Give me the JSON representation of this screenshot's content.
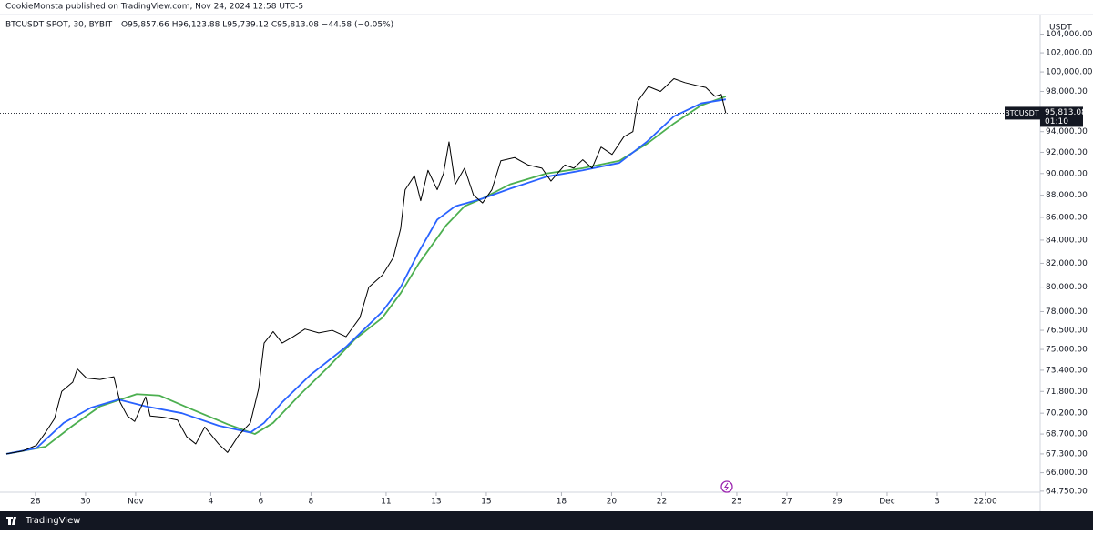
{
  "header": {
    "published": "CookieMonsta published on TradingView.com, Nov 24, 2024 12:58 UTC-5"
  },
  "footer": {
    "brand": "TradingView"
  },
  "chart_data": {
    "type": "line",
    "symbol": "BTCUSDT SPOT, 30, BYBIT",
    "ohlc": "O95,857.66 H96,123.88 L95,739.12 C95,813.08 −44.58 (−0.05%)",
    "currency": "USDT",
    "ticker": "BTCUSDT",
    "last_price": 95813.08,
    "last_price_label": "95,813.08",
    "countdown": "01:10",
    "log_scale": true,
    "ylim": [
      64680,
      105930
    ],
    "yticks": [
      {
        "value": 64750,
        "label": "64,750.00"
      },
      {
        "value": 66000,
        "label": "66,000.00"
      },
      {
        "value": 67300,
        "label": "67,300.00"
      },
      {
        "value": 68700,
        "label": "68,700.00"
      },
      {
        "value": 70200,
        "label": "70,200.00"
      },
      {
        "value": 71800,
        "label": "71,800.00"
      },
      {
        "value": 73400,
        "label": "73,400.00"
      },
      {
        "value": 75000,
        "label": "75,000.00"
      },
      {
        "value": 76500,
        "label": "76,500.00"
      },
      {
        "value": 78000,
        "label": "78,000.00"
      },
      {
        "value": 80000,
        "label": "80,000.00"
      },
      {
        "value": 82000,
        "label": "82,000.00"
      },
      {
        "value": 84000,
        "label": "84,000.00"
      },
      {
        "value": 86000,
        "label": "86,000.00"
      },
      {
        "value": 88000,
        "label": "88,000.00"
      },
      {
        "value": 90000,
        "label": "90,000.00"
      },
      {
        "value": 92000,
        "label": "92,000.00"
      },
      {
        "value": 94000,
        "label": "94,000.00"
      },
      {
        "value": 98000,
        "label": "98,000.00"
      },
      {
        "value": 100000,
        "label": "100,000.00"
      },
      {
        "value": 102000,
        "label": "102,000.00"
      },
      {
        "value": 104000,
        "label": "104,000.00"
      }
    ],
    "xlim": [
      26.84,
      68.11
    ],
    "xticks": [
      28,
      30,
      {
        "value": 32,
        "label": "Nov"
      },
      {
        "value": 35,
        "label": "4"
      },
      {
        "value": 37,
        "label": "6"
      },
      {
        "value": 39,
        "label": "8"
      },
      {
        "value": 42,
        "label": "11"
      },
      {
        "value": 44,
        "label": "13"
      },
      {
        "value": 46,
        "label": "15"
      },
      {
        "value": 49,
        "label": "18"
      },
      {
        "value": 51,
        "label": "20"
      },
      {
        "value": 53,
        "label": "22"
      },
      {
        "value": 56,
        "label": "25"
      },
      {
        "value": 58,
        "label": "27"
      },
      {
        "value": 60,
        "label": "29"
      },
      {
        "value": 62,
        "label": "Dec"
      },
      {
        "value": 64,
        "label": "3"
      },
      {
        "value": 65.92,
        "label": "22:00"
      }
    ],
    "series": [
      {
        "color": "#000000",
        "x": [
          26.84,
          27.49,
          28.04,
          28.4,
          28.76,
          29.05,
          29.49,
          29.67,
          30.04,
          30.58,
          31.13,
          31.38,
          31.67,
          31.96,
          32.4,
          32.58,
          33.13,
          33.67,
          34.04,
          34.4,
          34.76,
          35.31,
          35.67,
          36.11,
          36.58,
          36.91,
          37.13,
          37.49,
          37.85,
          38.29,
          38.76,
          39.31,
          39.85,
          40.4,
          40.95,
          41.31,
          41.85,
          42.29,
          42.58,
          42.76,
          43.13,
          43.38,
          43.67,
          44.04,
          44.29,
          44.51,
          44.76,
          45.13,
          45.49,
          45.85,
          46.22,
          46.58,
          47.13,
          47.67,
          48.22,
          48.58,
          49.13,
          49.49,
          49.85,
          50.22,
          50.58,
          51.02,
          51.49,
          51.85,
          52.04,
          52.47,
          52.95,
          53.49,
          53.93,
          54.4,
          54.76,
          55.13,
          55.38,
          55.56
        ],
        "values": [
          67300,
          67500,
          67900,
          68800,
          69800,
          71800,
          72500,
          73500,
          72800,
          72700,
          72900,
          71000,
          70000,
          69600,
          71400,
          70000,
          69900,
          69700,
          68500,
          68000,
          69200,
          68000,
          67400,
          68600,
          69500,
          72000,
          75500,
          76400,
          75500,
          76000,
          76600,
          76300,
          76500,
          76000,
          77500,
          80000,
          81000,
          82500,
          85000,
          88500,
          89800,
          87500,
          90300,
          88500,
          90000,
          93000,
          89000,
          90500,
          88000,
          87300,
          88500,
          91200,
          91500,
          90800,
          90500,
          89300,
          90800,
          90500,
          91300,
          90500,
          92500,
          91800,
          93500,
          94000,
          97000,
          98500,
          98000,
          99300,
          98900,
          98600,
          98400,
          97500,
          97700,
          95813.08
        ]
      },
      {
        "color": "#2962ff",
        "x": [
          26.84,
          28.04,
          29.13,
          30.22,
          31.31,
          32.4,
          33.85,
          35.31,
          36.58,
          37.13,
          37.85,
          38.95,
          40.4,
          41.85,
          42.58,
          43.31,
          44.04,
          44.76,
          45.85,
          46.95,
          48.4,
          49.85,
          51.31,
          52.4,
          53.49,
          54.58,
          55.56
        ],
        "values": [
          67300,
          67700,
          69500,
          70600,
          71200,
          70700,
          70200,
          69300,
          68800,
          69500,
          71000,
          73000,
          75200,
          78000,
          80000,
          83000,
          85800,
          87000,
          87700,
          88600,
          89700,
          90300,
          91000,
          93000,
          95500,
          96800,
          97200
        ]
      },
      {
        "color": "#4caf50",
        "x": [
          26.84,
          28.4,
          29.49,
          30.58,
          32.04,
          32.95,
          34.22,
          35.67,
          36.76,
          37.49,
          38.58,
          39.67,
          40.76,
          41.85,
          42.58,
          43.31,
          44.4,
          45.13,
          45.85,
          46.95,
          48.4,
          49.85,
          51.31,
          52.4,
          53.49,
          54.58,
          55.56
        ],
        "values": [
          67300,
          67800,
          69300,
          70700,
          71600,
          71500,
          70500,
          69400,
          68700,
          69500,
          71600,
          73600,
          75800,
          77500,
          79500,
          82000,
          85300,
          87000,
          87700,
          89000,
          90000,
          90500,
          91200,
          92800,
          94800,
          96600,
          97500
        ]
      }
    ]
  }
}
